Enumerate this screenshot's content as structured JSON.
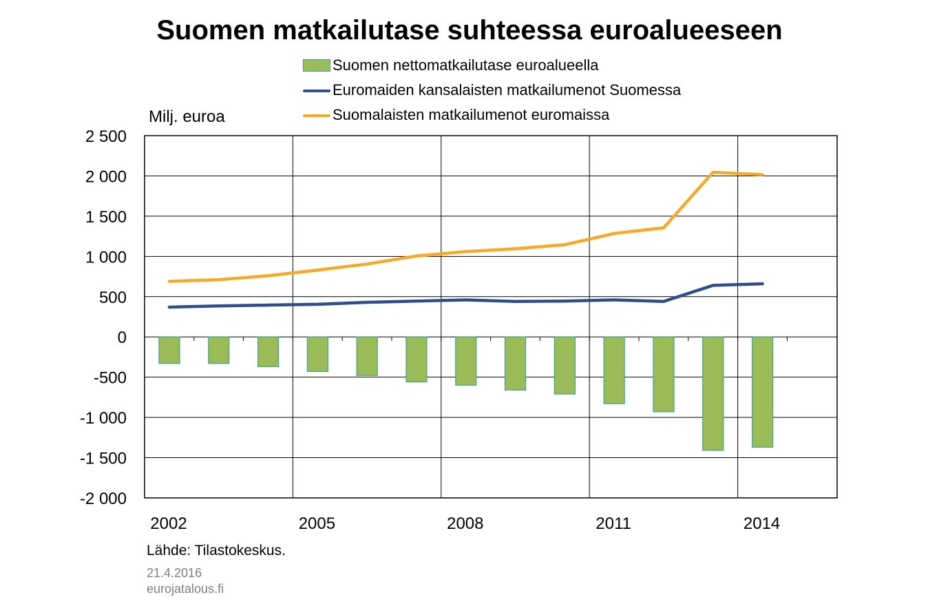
{
  "title": "Suomen matkailutase suhteessa euroalueeseen",
  "legend": [
    {
      "label": "Suomen nettomatkailutase euroalueella",
      "kind": "bar",
      "color": "#9bbb59"
    },
    {
      "label": "Euromaiden kansalaisten matkailumenot Suomessa",
      "kind": "line",
      "color": "#2f4d8a"
    },
    {
      "label": "Suomalaisten matkailumenot euromaissa",
      "kind": "line",
      "color": "#f9a825"
    }
  ],
  "unit_label": "Milj. euroa",
  "source": "Lähde: Tilastokeskus.",
  "date": "21.4.2016",
  "site": "eurojatalous.fi",
  "chart_data": {
    "type": "bar+line",
    "x": [
      2002,
      2003,
      2004,
      2005,
      2006,
      2007,
      2008,
      2009,
      2010,
      2011,
      2012,
      2013,
      2014
    ],
    "x_tick_labels": [
      "2002",
      "2005",
      "2008",
      "2011",
      "2014"
    ],
    "x_tick_values": [
      2002,
      2005,
      2008,
      2011,
      2014
    ],
    "ylim": [
      -2000,
      2500
    ],
    "y_ticks": [
      2500,
      2000,
      1500,
      1000,
      500,
      0,
      -500,
      -1000,
      -1500,
      -2000
    ],
    "y_tick_labels": [
      "2 500",
      "2 000",
      "1 500",
      "1 000",
      "500",
      "0",
      "-500",
      "-1 000",
      "-1 500",
      "-2 000"
    ],
    "grid": true,
    "series": [
      {
        "name": "Suomen nettomatkailutase euroalueella",
        "kind": "bar",
        "color": "#9bbb59",
        "values": [
          -330,
          -330,
          -370,
          -430,
          -480,
          -560,
          -600,
          -660,
          -710,
          -830,
          -930,
          -1410,
          -1370
        ]
      },
      {
        "name": "Euromaiden kansalaisten matkailumenot Suomessa",
        "kind": "line",
        "color": "#2f4d8a",
        "values": [
          370,
          385,
          395,
          405,
          430,
          445,
          460,
          440,
          445,
          460,
          440,
          640,
          660
        ]
      },
      {
        "name": "Suomalaisten matkailumenot euromaissa",
        "kind": "line",
        "color": "#f9a825",
        "values": [
          690,
          710,
          760,
          830,
          905,
          1005,
          1060,
          1095,
          1145,
          1285,
          1355,
          2045,
          2015
        ]
      }
    ]
  }
}
